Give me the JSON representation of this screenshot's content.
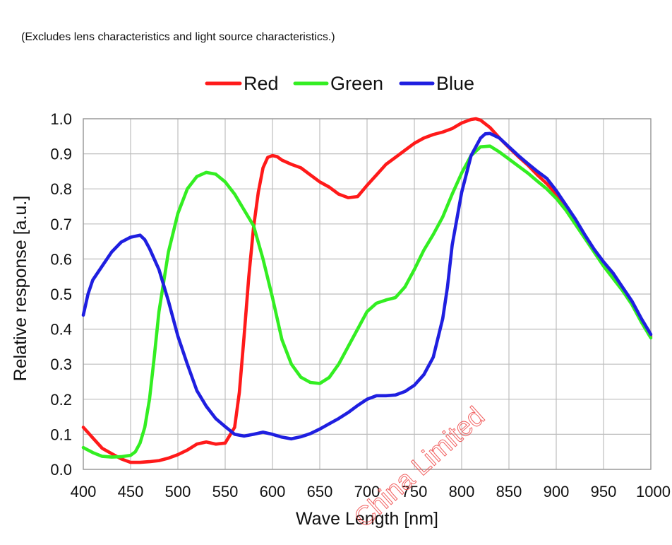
{
  "note": "(Excludes lens characteristics and light source characteristics.)",
  "watermark": "China Limited",
  "chart_data": {
    "type": "line",
    "title": "",
    "xlabel": "Wave Length [nm]",
    "ylabel": "Relative response [a.u.]",
    "xlim": [
      400,
      1000
    ],
    "ylim": [
      0,
      1
    ],
    "xticks": [
      "400",
      "450",
      "500",
      "550",
      "600",
      "650",
      "700",
      "750",
      "800",
      "850",
      "900",
      "950",
      "1000"
    ],
    "yticks": [
      "0.0",
      "0.1",
      "0.2",
      "0.3",
      "0.4",
      "0.5",
      "0.6",
      "0.7",
      "0.8",
      "0.9",
      "1.0"
    ],
    "grid": true,
    "legend_position": "top-center",
    "series": [
      {
        "name": "Red",
        "color": "#ff1a1a",
        "points": [
          [
            400,
            0.12
          ],
          [
            410,
            0.09
          ],
          [
            420,
            0.06
          ],
          [
            430,
            0.045
          ],
          [
            440,
            0.03
          ],
          [
            450,
            0.02
          ],
          [
            460,
            0.02
          ],
          [
            470,
            0.022
          ],
          [
            480,
            0.025
          ],
          [
            490,
            0.032
          ],
          [
            500,
            0.042
          ],
          [
            510,
            0.055
          ],
          [
            520,
            0.072
          ],
          [
            530,
            0.078
          ],
          [
            540,
            0.072
          ],
          [
            550,
            0.075
          ],
          [
            560,
            0.12
          ],
          [
            565,
            0.22
          ],
          [
            570,
            0.38
          ],
          [
            575,
            0.55
          ],
          [
            580,
            0.69
          ],
          [
            585,
            0.79
          ],
          [
            590,
            0.86
          ],
          [
            595,
            0.89
          ],
          [
            600,
            0.895
          ],
          [
            605,
            0.892
          ],
          [
            610,
            0.882
          ],
          [
            620,
            0.87
          ],
          [
            630,
            0.86
          ],
          [
            640,
            0.84
          ],
          [
            650,
            0.82
          ],
          [
            660,
            0.805
          ],
          [
            670,
            0.785
          ],
          [
            680,
            0.775
          ],
          [
            690,
            0.778
          ],
          [
            700,
            0.81
          ],
          [
            710,
            0.84
          ],
          [
            720,
            0.87
          ],
          [
            730,
            0.89
          ],
          [
            740,
            0.91
          ],
          [
            750,
            0.93
          ],
          [
            760,
            0.945
          ],
          [
            770,
            0.955
          ],
          [
            780,
            0.962
          ],
          [
            790,
            0.972
          ],
          [
            800,
            0.988
          ],
          [
            810,
            0.998
          ],
          [
            815,
            1.0
          ],
          [
            820,
            0.996
          ],
          [
            830,
            0.975
          ],
          [
            840,
            0.945
          ],
          [
            850,
            0.918
          ],
          [
            860,
            0.892
          ],
          [
            870,
            0.868
          ],
          [
            880,
            0.84
          ],
          [
            890,
            0.815
          ],
          [
            900,
            0.785
          ],
          [
            910,
            0.75
          ],
          [
            920,
            0.715
          ],
          [
            930,
            0.665
          ],
          [
            940,
            0.625
          ],
          [
            950,
            0.585
          ],
          [
            960,
            0.548
          ],
          [
            970,
            0.515
          ],
          [
            980,
            0.475
          ],
          [
            990,
            0.425
          ],
          [
            1000,
            0.38
          ]
        ]
      },
      {
        "name": "Green",
        "color": "#33ee22",
        "points": [
          [
            400,
            0.062
          ],
          [
            410,
            0.048
          ],
          [
            420,
            0.037
          ],
          [
            430,
            0.035
          ],
          [
            440,
            0.036
          ],
          [
            450,
            0.04
          ],
          [
            455,
            0.05
          ],
          [
            460,
            0.075
          ],
          [
            465,
            0.12
          ],
          [
            470,
            0.2
          ],
          [
            475,
            0.32
          ],
          [
            480,
            0.45
          ],
          [
            490,
            0.62
          ],
          [
            500,
            0.73
          ],
          [
            510,
            0.8
          ],
          [
            520,
            0.835
          ],
          [
            530,
            0.847
          ],
          [
            540,
            0.842
          ],
          [
            550,
            0.82
          ],
          [
            560,
            0.785
          ],
          [
            570,
            0.74
          ],
          [
            580,
            0.695
          ],
          [
            590,
            0.6
          ],
          [
            600,
            0.49
          ],
          [
            610,
            0.37
          ],
          [
            620,
            0.3
          ],
          [
            630,
            0.263
          ],
          [
            640,
            0.248
          ],
          [
            650,
            0.245
          ],
          [
            660,
            0.262
          ],
          [
            670,
            0.3
          ],
          [
            680,
            0.35
          ],
          [
            690,
            0.4
          ],
          [
            700,
            0.45
          ],
          [
            710,
            0.474
          ],
          [
            720,
            0.483
          ],
          [
            730,
            0.49
          ],
          [
            740,
            0.52
          ],
          [
            750,
            0.57
          ],
          [
            760,
            0.625
          ],
          [
            770,
            0.67
          ],
          [
            780,
            0.72
          ],
          [
            790,
            0.785
          ],
          [
            800,
            0.845
          ],
          [
            810,
            0.895
          ],
          [
            820,
            0.92
          ],
          [
            830,
            0.922
          ],
          [
            840,
            0.905
          ],
          [
            850,
            0.885
          ],
          [
            860,
            0.865
          ],
          [
            870,
            0.845
          ],
          [
            880,
            0.822
          ],
          [
            890,
            0.8
          ],
          [
            900,
            0.773
          ],
          [
            910,
            0.74
          ],
          [
            920,
            0.7
          ],
          [
            930,
            0.66
          ],
          [
            940,
            0.62
          ],
          [
            950,
            0.58
          ],
          [
            960,
            0.545
          ],
          [
            970,
            0.51
          ],
          [
            980,
            0.47
          ],
          [
            990,
            0.42
          ],
          [
            1000,
            0.375
          ]
        ]
      },
      {
        "name": "Blue",
        "color": "#1f1fe0",
        "points": [
          [
            400,
            0.44
          ],
          [
            405,
            0.5
          ],
          [
            410,
            0.54
          ],
          [
            420,
            0.58
          ],
          [
            430,
            0.62
          ],
          [
            440,
            0.648
          ],
          [
            450,
            0.662
          ],
          [
            460,
            0.668
          ],
          [
            465,
            0.655
          ],
          [
            470,
            0.63
          ],
          [
            480,
            0.57
          ],
          [
            490,
            0.48
          ],
          [
            500,
            0.38
          ],
          [
            510,
            0.3
          ],
          [
            520,
            0.225
          ],
          [
            530,
            0.18
          ],
          [
            540,
            0.145
          ],
          [
            550,
            0.122
          ],
          [
            560,
            0.1
          ],
          [
            570,
            0.095
          ],
          [
            580,
            0.1
          ],
          [
            590,
            0.106
          ],
          [
            600,
            0.1
          ],
          [
            610,
            0.092
          ],
          [
            620,
            0.087
          ],
          [
            630,
            0.093
          ],
          [
            640,
            0.102
          ],
          [
            650,
            0.115
          ],
          [
            660,
            0.13
          ],
          [
            670,
            0.145
          ],
          [
            680,
            0.162
          ],
          [
            690,
            0.182
          ],
          [
            700,
            0.2
          ],
          [
            710,
            0.21
          ],
          [
            720,
            0.21
          ],
          [
            730,
            0.212
          ],
          [
            740,
            0.222
          ],
          [
            750,
            0.24
          ],
          [
            760,
            0.27
          ],
          [
            770,
            0.32
          ],
          [
            780,
            0.43
          ],
          [
            785,
            0.52
          ],
          [
            790,
            0.64
          ],
          [
            800,
            0.79
          ],
          [
            810,
            0.895
          ],
          [
            820,
            0.945
          ],
          [
            825,
            0.957
          ],
          [
            830,
            0.958
          ],
          [
            840,
            0.945
          ],
          [
            850,
            0.92
          ],
          [
            860,
            0.895
          ],
          [
            870,
            0.872
          ],
          [
            880,
            0.85
          ],
          [
            890,
            0.83
          ],
          [
            900,
            0.795
          ],
          [
            910,
            0.755
          ],
          [
            920,
            0.715
          ],
          [
            930,
            0.67
          ],
          [
            940,
            0.628
          ],
          [
            950,
            0.592
          ],
          [
            960,
            0.56
          ],
          [
            970,
            0.52
          ],
          [
            980,
            0.48
          ],
          [
            990,
            0.43
          ],
          [
            1000,
            0.385
          ]
        ]
      }
    ]
  }
}
